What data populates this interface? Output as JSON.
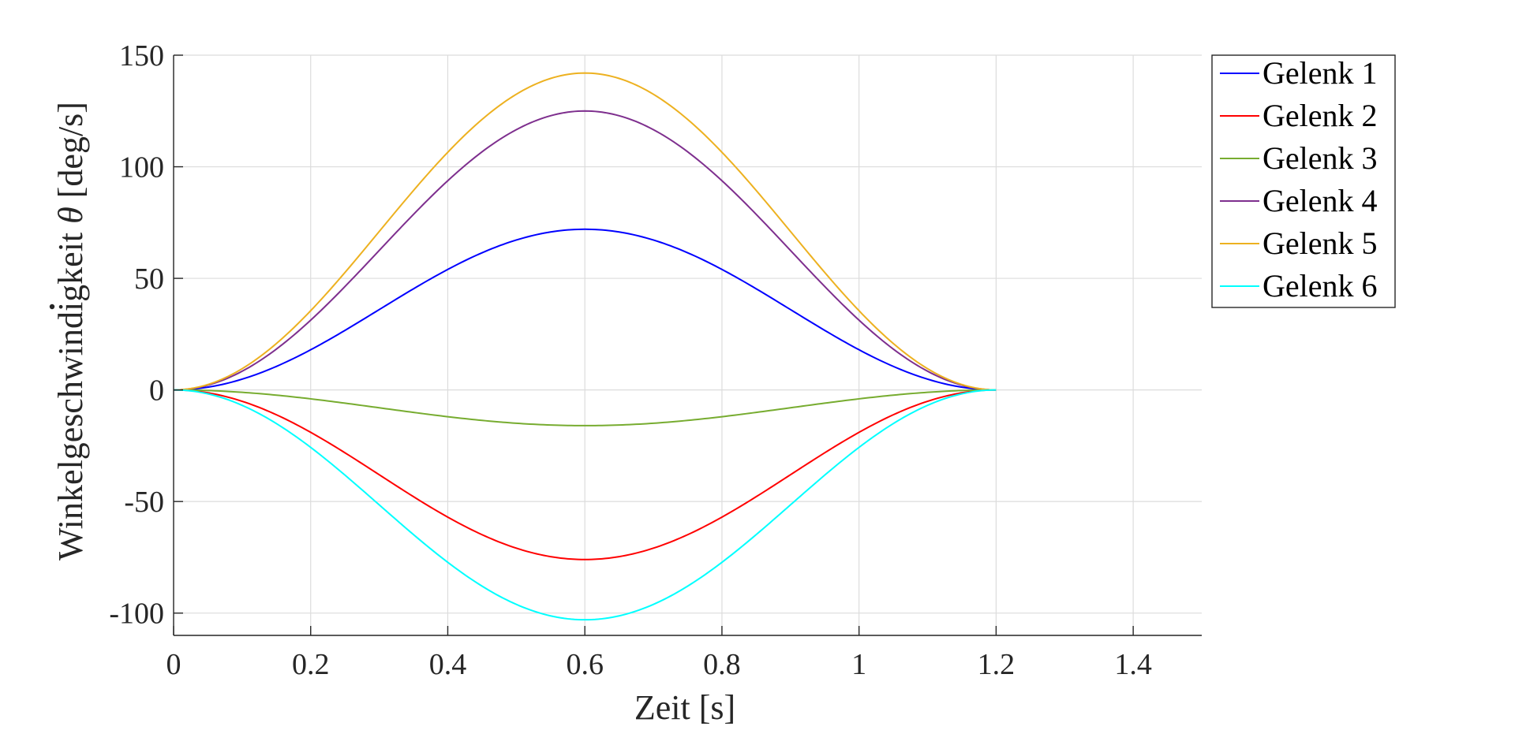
{
  "chart_data": {
    "type": "line",
    "xlabel": "Zeit [s]",
    "ylabel_prefix": "Winkelgeschwindigkeit ",
    "ylabel_symbol": "θ",
    "ylabel_unit": " [deg/s]",
    "xlim": [
      0,
      1.5
    ],
    "ylim": [
      -110,
      150
    ],
    "xticks": [
      0,
      0.2,
      0.4,
      0.6,
      0.8,
      1,
      1.2,
      1.4
    ],
    "xtick_labels": [
      "0",
      "0.2",
      "0.4",
      "0.6",
      "0.8",
      "1",
      "1.2",
      "1.4"
    ],
    "yticks": [
      -100,
      -50,
      0,
      50,
      100,
      150
    ],
    "ytick_labels": [
      "-100",
      "-50",
      "0",
      "50",
      "100",
      "150"
    ],
    "grid": true,
    "legend_position": "outside-right-top",
    "x": [
      0,
      0.05,
      0.1,
      0.15,
      0.2,
      0.25,
      0.3,
      0.35,
      0.4,
      0.45,
      0.5,
      0.55,
      0.6,
      0.65,
      0.7,
      0.75,
      0.8,
      0.85,
      0.9,
      0.95,
      1.0,
      1.05,
      1.1,
      1.15,
      1.2
    ],
    "series": [
      {
        "name": "Gelenk 1",
        "color": "#0000ff",
        "peak": 72,
        "values": [
          0,
          1.2,
          4.8,
          10.6,
          18.0,
          26.4,
          35.3,
          44.1,
          52.4,
          59.6,
          65.5,
          69.5,
          72,
          69.5,
          65.5,
          59.6,
          52.4,
          44.1,
          35.3,
          26.4,
          18.0,
          10.6,
          4.8,
          1.2,
          0
        ]
      },
      {
        "name": "Gelenk 2",
        "color": "#ff0000",
        "peak": -76,
        "values": [
          0,
          -1.3,
          -5.1,
          -11.2,
          -19.0,
          -27.8,
          -37.2,
          -46.6,
          -55.3,
          -62.9,
          -69.1,
          -73.4,
          -76,
          -73.4,
          -69.1,
          -62.9,
          -55.3,
          -46.6,
          -37.2,
          -27.8,
          -19.0,
          -11.2,
          -5.1,
          -1.3,
          0
        ]
      },
      {
        "name": "Gelenk 3",
        "color": "#77ac30",
        "peak": -16,
        "values": [
          0,
          -0.3,
          -1.1,
          -2.4,
          -4.0,
          -5.9,
          -7.8,
          -9.8,
          -11.6,
          -13.2,
          -14.6,
          -15.5,
          -16,
          -15.5,
          -14.6,
          -13.2,
          -11.6,
          -9.8,
          -7.8,
          -5.9,
          -4.0,
          -2.4,
          -1.1,
          -0.3,
          0
        ]
      },
      {
        "name": "Gelenk 4",
        "color": "#7e2f8e",
        "peak": 125,
        "values": [
          0,
          2.1,
          8.4,
          18.3,
          31.3,
          45.8,
          61.2,
          76.6,
          91.0,
          103.5,
          113.7,
          120.8,
          125,
          120.8,
          113.7,
          103.5,
          91.0,
          76.6,
          61.2,
          45.8,
          31.3,
          18.3,
          8.4,
          2.1,
          0
        ]
      },
      {
        "name": "Gelenk 5",
        "color": "#edb120",
        "peak": 142,
        "values": [
          0,
          2.4,
          9.5,
          20.8,
          35.5,
          52.0,
          69.5,
          87.0,
          103.4,
          117.6,
          129.2,
          137.2,
          142,
          137.2,
          129.2,
          117.6,
          103.4,
          87.0,
          69.5,
          52.0,
          35.5,
          20.8,
          9.5,
          2.4,
          0
        ]
      },
      {
        "name": "Gelenk 6",
        "color": "#00ffff",
        "peak": -103,
        "values": [
          0,
          -1.8,
          -6.9,
          -15.1,
          -25.8,
          -37.7,
          -50.4,
          -63.1,
          -75.0,
          -85.3,
          -93.7,
          -99.5,
          -103,
          -99.5,
          -93.7,
          -85.3,
          -75.0,
          -63.1,
          -50.4,
          -37.7,
          -25.8,
          -15.1,
          -6.9,
          -1.8,
          0
        ]
      }
    ]
  }
}
